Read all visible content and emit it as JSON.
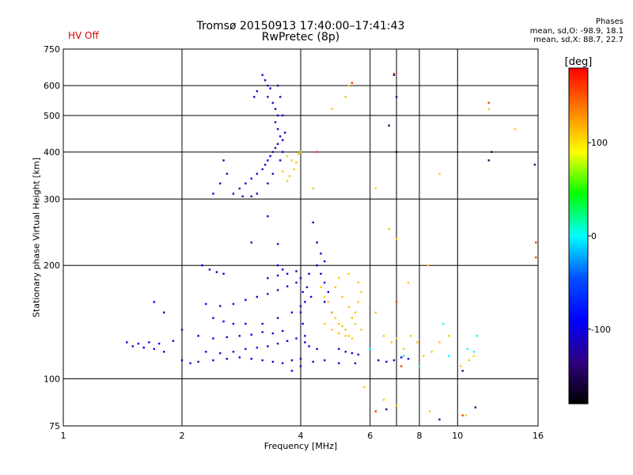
{
  "header": {
    "title_line1": "Tromsø 20150913 17:40:00–17:41:43",
    "title_line2": "RwPretec (8p)",
    "hv_status": "HV Off",
    "hv_color": "#dd0000"
  },
  "phases": {
    "title": "Phases",
    "line_o": "mean, sd,O: -98.9, 18.1",
    "line_x": "mean, sd,X: 88.7, 22.7"
  },
  "chart_data": {
    "type": "scatter",
    "title": "Tromsø 20150913 17:40:00–17:41:43",
    "subtitle": "RwPretec (8p)",
    "xlabel": "Frequency [MHz]",
    "ylabel": "Stationary phase Virtual Height [km]",
    "x_scale": "log",
    "y_scale": "log",
    "xlim": [
      1,
      16
    ],
    "ylim": [
      75,
      750
    ],
    "x_ticks": [
      1,
      2,
      4,
      6,
      8,
      10,
      16
    ],
    "y_ticks": [
      75,
      100,
      200,
      300,
      400,
      500,
      600,
      750
    ],
    "x_grid": [
      1,
      2,
      4,
      6,
      7,
      8,
      10,
      16
    ],
    "y_grid": [
      75,
      100,
      200,
      300,
      400,
      500,
      600,
      750
    ],
    "grid": true,
    "colorbar": {
      "label": "[deg]",
      "range": [
        -180,
        180
      ],
      "ticks": [
        100,
        0,
        -100
      ],
      "colors": [
        "#ff0000",
        "#ff8000",
        "#ffff00",
        "#00ff00",
        "#00ffff",
        "#0050ff",
        "#0000ff",
        "#300080",
        "#000000"
      ]
    },
    "series": [
      {
        "color_value": -110,
        "points": [
          [
            3.2,
            640
          ],
          [
            3.25,
            620
          ],
          [
            3.3,
            600
          ],
          [
            3.35,
            590
          ],
          [
            3.3,
            560
          ],
          [
            3.4,
            540
          ],
          [
            3.45,
            520
          ],
          [
            3.5,
            500
          ],
          [
            3.45,
            480
          ],
          [
            3.5,
            460
          ],
          [
            3.55,
            440
          ],
          [
            3.6,
            430
          ],
          [
            3.5,
            420
          ],
          [
            3.45,
            410
          ],
          [
            3.4,
            400
          ],
          [
            3.35,
            390
          ],
          [
            3.3,
            380
          ],
          [
            3.25,
            370
          ],
          [
            3.2,
            360
          ],
          [
            3.1,
            350
          ],
          [
            3.0,
            340
          ],
          [
            2.9,
            330
          ],
          [
            2.8,
            320
          ],
          [
            2.7,
            310
          ],
          [
            2.85,
            305
          ],
          [
            3.0,
            305
          ],
          [
            3.1,
            310
          ],
          [
            3.3,
            330
          ],
          [
            3.4,
            350
          ],
          [
            3.55,
            380
          ],
          [
            3.6,
            400
          ],
          [
            3.65,
            450
          ],
          [
            3.6,
            500
          ],
          [
            3.55,
            560
          ],
          [
            3.5,
            600
          ],
          [
            3.1,
            580
          ],
          [
            3.05,
            560
          ],
          [
            2.5,
            330
          ],
          [
            2.4,
            310
          ],
          [
            2.6,
            350
          ],
          [
            2.55,
            380
          ]
        ]
      },
      {
        "color_value": -100,
        "points": [
          [
            1.45,
            125
          ],
          [
            1.5,
            122
          ],
          [
            1.55,
            124
          ],
          [
            1.6,
            121
          ],
          [
            1.65,
            125
          ],
          [
            1.7,
            120
          ],
          [
            1.75,
            124
          ],
          [
            1.8,
            118
          ],
          [
            1.9,
            126
          ],
          [
            2.0,
            112
          ],
          [
            2.1,
            110
          ],
          [
            2.2,
            111
          ],
          [
            2.4,
            112
          ],
          [
            2.6,
            113
          ],
          [
            2.8,
            114
          ],
          [
            3.0,
            113
          ],
          [
            3.2,
            112
          ],
          [
            3.4,
            111
          ],
          [
            3.6,
            110
          ],
          [
            3.8,
            112
          ],
          [
            4.0,
            113
          ],
          [
            4.3,
            111
          ],
          [
            4.6,
            112
          ],
          [
            5.0,
            110
          ],
          [
            5.5,
            110
          ],
          [
            2.3,
            118
          ],
          [
            2.5,
            117
          ],
          [
            2.7,
            118
          ],
          [
            2.9,
            120
          ],
          [
            3.1,
            121
          ],
          [
            3.3,
            122
          ],
          [
            3.5,
            124
          ],
          [
            3.7,
            126
          ],
          [
            3.9,
            128
          ],
          [
            4.1,
            125
          ],
          [
            4.4,
            120
          ],
          [
            2.2,
            130
          ],
          [
            2.4,
            128
          ],
          [
            2.6,
            129
          ],
          [
            2.8,
            130
          ],
          [
            3.0,
            131
          ],
          [
            3.2,
            133
          ],
          [
            3.4,
            132
          ],
          [
            3.6,
            134
          ],
          [
            2.3,
            158
          ],
          [
            2.5,
            156
          ],
          [
            2.7,
            158
          ],
          [
            2.9,
            162
          ],
          [
            3.1,
            165
          ],
          [
            3.3,
            168
          ],
          [
            3.5,
            172
          ],
          [
            3.7,
            176
          ],
          [
            3.9,
            180
          ],
          [
            4.2,
            190
          ],
          [
            4.4,
            200
          ],
          [
            2.25,
            200
          ],
          [
            2.35,
            195
          ],
          [
            2.45,
            192
          ],
          [
            2.55,
            190
          ],
          [
            3.3,
            185
          ],
          [
            3.5,
            188
          ],
          [
            3.7,
            190
          ],
          [
            3.9,
            193
          ],
          [
            2.4,
            145
          ],
          [
            2.55,
            142
          ],
          [
            2.7,
            140
          ],
          [
            2.9,
            140
          ],
          [
            3.2,
            140
          ],
          [
            3.5,
            145
          ],
          [
            3.8,
            150
          ],
          [
            4.0,
            156
          ],
          [
            4.0,
            185
          ],
          [
            4.05,
            170
          ],
          [
            4.1,
            160
          ],
          [
            4.0,
            150
          ],
          [
            4.05,
            140
          ],
          [
            4.1,
            130
          ],
          [
            4.2,
            122
          ],
          [
            4.15,
            175
          ],
          [
            4.25,
            165
          ],
          [
            4.3,
            260
          ],
          [
            4.4,
            230
          ],
          [
            4.5,
            215
          ],
          [
            4.6,
            205
          ],
          [
            4.5,
            190
          ],
          [
            4.6,
            180
          ],
          [
            4.7,
            170
          ],
          [
            4.6,
            160
          ],
          [
            4.8,
            150
          ],
          [
            5.0,
            120
          ],
          [
            5.2,
            118
          ],
          [
            5.4,
            117
          ],
          [
            5.6,
            116
          ],
          [
            6.3,
            112
          ],
          [
            6.6,
            111
          ],
          [
            6.9,
            112
          ],
          [
            7.2,
            114
          ],
          [
            7.5,
            113
          ],
          [
            3.8,
            105
          ],
          [
            4.0,
            108
          ],
          [
            2.0,
            135
          ],
          [
            1.8,
            150
          ],
          [
            1.7,
            160
          ],
          [
            3.0,
            230
          ],
          [
            3.3,
            270
          ],
          [
            3.5,
            228
          ],
          [
            3.6,
            195
          ],
          [
            3.5,
            200
          ]
        ]
      },
      {
        "color_value": 110,
        "points": [
          [
            3.7,
            390
          ],
          [
            3.8,
            380
          ],
          [
            3.9,
            375
          ],
          [
            3.85,
            360
          ],
          [
            3.75,
            345
          ],
          [
            3.7,
            335
          ],
          [
            3.95,
            395
          ],
          [
            4.0,
            400
          ],
          [
            3.6,
            355
          ],
          [
            4.3,
            320
          ],
          [
            4.5,
            175
          ],
          [
            4.6,
            165
          ],
          [
            4.7,
            160
          ],
          [
            4.8,
            150
          ],
          [
            4.9,
            145
          ],
          [
            5.0,
            140
          ],
          [
            5.1,
            138
          ],
          [
            5.2,
            135
          ],
          [
            5.3,
            130
          ],
          [
            5.4,
            128
          ],
          [
            4.6,
            140
          ],
          [
            4.8,
            135
          ],
          [
            5.0,
            132
          ],
          [
            5.2,
            130
          ],
          [
            5.4,
            145
          ],
          [
            5.5,
            150
          ],
          [
            5.6,
            160
          ],
          [
            5.7,
            170
          ],
          [
            5.6,
            180
          ],
          [
            5.3,
            190
          ],
          [
            5.0,
            185
          ],
          [
            4.9,
            175
          ],
          [
            5.1,
            165
          ],
          [
            5.3,
            155
          ],
          [
            5.5,
            140
          ],
          [
            5.7,
            135
          ],
          [
            6.5,
            130
          ],
          [
            6.8,
            125
          ],
          [
            7.0,
            128
          ],
          [
            7.3,
            120
          ],
          [
            7.6,
            130
          ],
          [
            7.9,
            125
          ],
          [
            8.2,
            115
          ],
          [
            8.6,
            118
          ],
          [
            9.0,
            125
          ],
          [
            9.5,
            130
          ],
          [
            10.2,
            108
          ],
          [
            10.7,
            112
          ],
          [
            11.0,
            115
          ],
          [
            6.2,
            150
          ],
          [
            7.5,
            180
          ],
          [
            8.4,
            200
          ],
          [
            5.8,
            95
          ],
          [
            6.5,
            88
          ],
          [
            7.0,
            85
          ],
          [
            8.5,
            82
          ],
          [
            10.5,
            80
          ],
          [
            12.0,
            520
          ],
          [
            14.0,
            460
          ],
          [
            9.0,
            350
          ],
          [
            5.2,
            560
          ],
          [
            5.3,
            600
          ],
          [
            4.8,
            520
          ],
          [
            6.2,
            320
          ],
          [
            6.7,
            250
          ],
          [
            7.0,
            235
          ]
        ]
      },
      {
        "color_value": 0,
        "points": [
          [
            6.0,
            120
          ],
          [
            7.3,
            115
          ],
          [
            8.0,
            108
          ],
          [
            9.5,
            115
          ],
          [
            10.6,
            120
          ],
          [
            11.0,
            118
          ],
          [
            9.2,
            140
          ],
          [
            11.2,
            130
          ]
        ]
      },
      {
        "color_value": 160,
        "points": [
          [
            5.4,
            610
          ],
          [
            6.9,
            645
          ],
          [
            7.0,
            160
          ],
          [
            7.2,
            108
          ],
          [
            10.3,
            80
          ],
          [
            12.0,
            540
          ],
          [
            15.8,
            210
          ],
          [
            15.8,
            230
          ],
          [
            6.2,
            82
          ],
          [
            4.4,
            400
          ]
        ]
      },
      {
        "color_value": -140,
        "points": [
          [
            6.9,
            640
          ],
          [
            7.0,
            400
          ],
          [
            7.0,
            560
          ],
          [
            6.7,
            470
          ],
          [
            12.0,
            380
          ],
          [
            12.2,
            400
          ],
          [
            15.7,
            370
          ],
          [
            10.3,
            105
          ],
          [
            11.1,
            84
          ],
          [
            6.6,
            83
          ],
          [
            9.0,
            78
          ]
        ]
      }
    ]
  }
}
